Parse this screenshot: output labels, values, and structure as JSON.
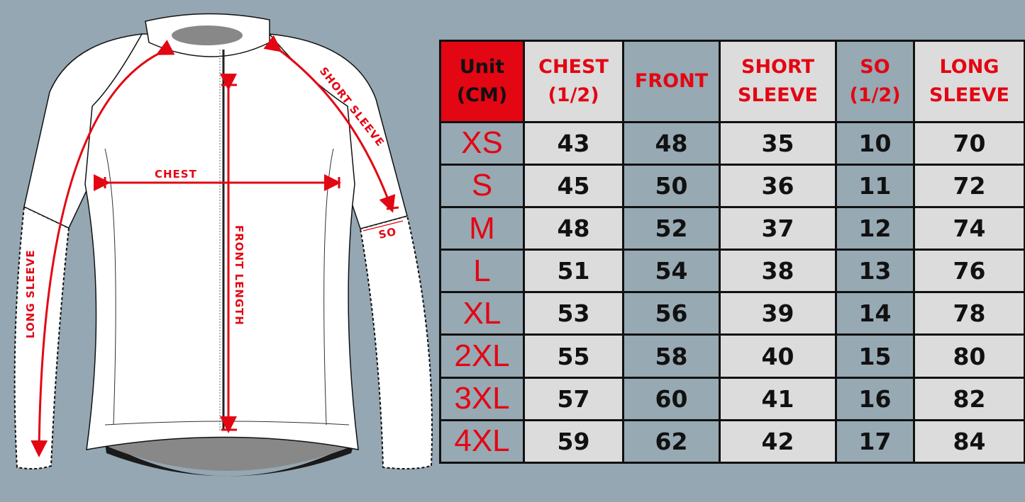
{
  "diagram": {
    "labels": {
      "chest": "CHEST",
      "front_length": "FRONT LENGTH",
      "short_sleeve": "SHORT SLEEVE",
      "long_sleeve": "LONG SLEEVE",
      "so": "SO"
    },
    "colors": {
      "arrow": "#e30613",
      "background": "#94a7b2"
    }
  },
  "table": {
    "headers": [
      "Unit\n(CM)",
      "CHEST\n(1/2)",
      "FRONT",
      "SHORT\nSLEEVE",
      "SO\n(1/2)",
      "LONG\nSLEEVE"
    ],
    "rows": [
      [
        "XS",
        "43",
        "48",
        "35",
        "10",
        "70"
      ],
      [
        "S",
        "45",
        "50",
        "36",
        "11",
        "72"
      ],
      [
        "M",
        "48",
        "52",
        "37",
        "12",
        "74"
      ],
      [
        "L",
        "51",
        "54",
        "38",
        "13",
        "76"
      ],
      [
        "XL",
        "53",
        "56",
        "39",
        "14",
        "78"
      ],
      [
        "2XL",
        "55",
        "58",
        "40",
        "15",
        "80"
      ],
      [
        "3XL",
        "57",
        "60",
        "41",
        "16",
        "82"
      ],
      [
        "4XL",
        "59",
        "62",
        "42",
        "17",
        "84"
      ]
    ]
  }
}
